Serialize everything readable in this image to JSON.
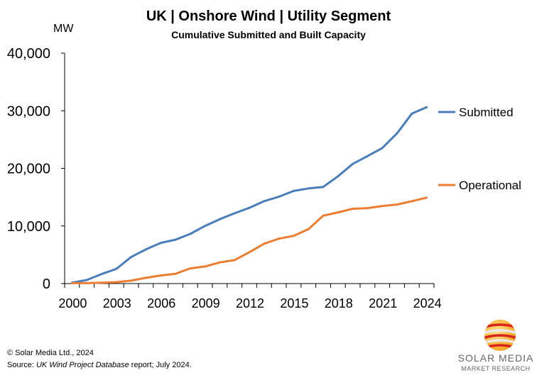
{
  "title": "UK | Onshore Wind | Utility Segment",
  "subtitle": "Cumulative Submitted and Built Capacity",
  "footer": {
    "copyright": "© Solar Media Ltd., 2024",
    "source_prefix": "Source: ",
    "source_title": "UK Wind Project Database",
    "source_suffix": " report; July 2024."
  },
  "logo": {
    "line1": "SOLAR MEDIA",
    "line2": "MARKET RESEARCH"
  },
  "chart_data": {
    "type": "line",
    "title": "UK | Onshore Wind | Utility Segment",
    "subtitle": "Cumulative Submitted and Built Capacity",
    "xlabel": "",
    "ylabel": "MW",
    "ylim": [
      0,
      40000
    ],
    "yticks": [
      "0",
      "10,000",
      "20,000",
      "30,000",
      "40,000"
    ],
    "ytick_values": [
      0,
      10000,
      20000,
      30000,
      40000
    ],
    "x": [
      2000,
      2001,
      2002,
      2003,
      2004,
      2005,
      2006,
      2007,
      2008,
      2009,
      2010,
      2011,
      2012,
      2013,
      2014,
      2015,
      2016,
      2017,
      2018,
      2019,
      2020,
      2021,
      2022,
      2023,
      2024
    ],
    "xtick_labels": [
      "2000",
      "2003",
      "2006",
      "2009",
      "2012",
      "2015",
      "2018",
      "2021",
      "2024"
    ],
    "grid": false,
    "legend": "right",
    "series": [
      {
        "name": "Submitted",
        "color": "#4a7ebb",
        "values": [
          160,
          620,
          1650,
          2550,
          4600,
          5930,
          7050,
          7620,
          8610,
          10010,
          11170,
          12200,
          13140,
          14300,
          15080,
          16070,
          16520,
          16770,
          18620,
          20770,
          22130,
          23530,
          26080,
          29500,
          30610
        ]
      },
      {
        "name": "Operational",
        "color": "#ed7d31",
        "values": [
          80,
          80,
          160,
          250,
          500,
          1000,
          1400,
          1690,
          2640,
          2970,
          3670,
          4080,
          5440,
          6920,
          7790,
          8280,
          9440,
          11780,
          12360,
          12980,
          13100,
          13470,
          13720,
          14300,
          14920
        ]
      }
    ]
  }
}
